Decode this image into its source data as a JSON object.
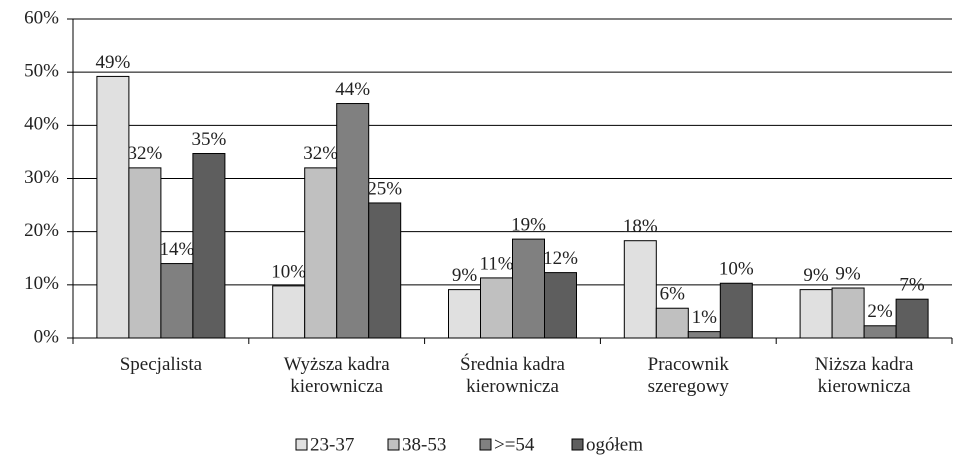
{
  "chart_data": {
    "type": "bar",
    "categories": [
      "Specjalista",
      "Wyższa kadra kierownicza",
      "Średnia kadra kierownicza",
      "Pracownik szeregowy",
      "Niższa kadra kierownicza"
    ],
    "series": [
      {
        "name": "23-37",
        "color": "#e0e0e0",
        "values": [
          49.2,
          9.8,
          9.1,
          18.3,
          9.1
        ],
        "value_labels": [
          "49%",
          "10%",
          "9%",
          "18%",
          "9%"
        ]
      },
      {
        "name": "38-53",
        "color": "#c0c0c0",
        "values": [
          32.0,
          32.0,
          11.3,
          5.6,
          9.4
        ],
        "value_labels": [
          "32%",
          "32%",
          "11%",
          "6%",
          "9%"
        ]
      },
      {
        "name": ">=54",
        "color": "#808080",
        "values": [
          14.0,
          44.1,
          18.6,
          1.2,
          2.3
        ],
        "value_labels": [
          "14%",
          "44%",
          "19%",
          "1%",
          "2%"
        ]
      },
      {
        "name": "ogółem",
        "color": "#5e5e5e",
        "values": [
          34.7,
          25.4,
          12.3,
          10.3,
          7.3
        ],
        "value_labels": [
          "35%",
          "25%",
          "12%",
          "10%",
          "7%"
        ]
      }
    ],
    "ylim": [
      0,
      60
    ],
    "yticks": [
      {
        "value": 0,
        "label": "0%"
      },
      {
        "value": 10,
        "label": "10%"
      },
      {
        "value": 20,
        "label": "20%"
      },
      {
        "value": 30,
        "label": "30%"
      },
      {
        "value": 40,
        "label": "40%"
      },
      {
        "value": 50,
        "label": "50%"
      },
      {
        "value": 60,
        "label": "60%"
      }
    ],
    "grid": true,
    "legend": "bottom"
  }
}
